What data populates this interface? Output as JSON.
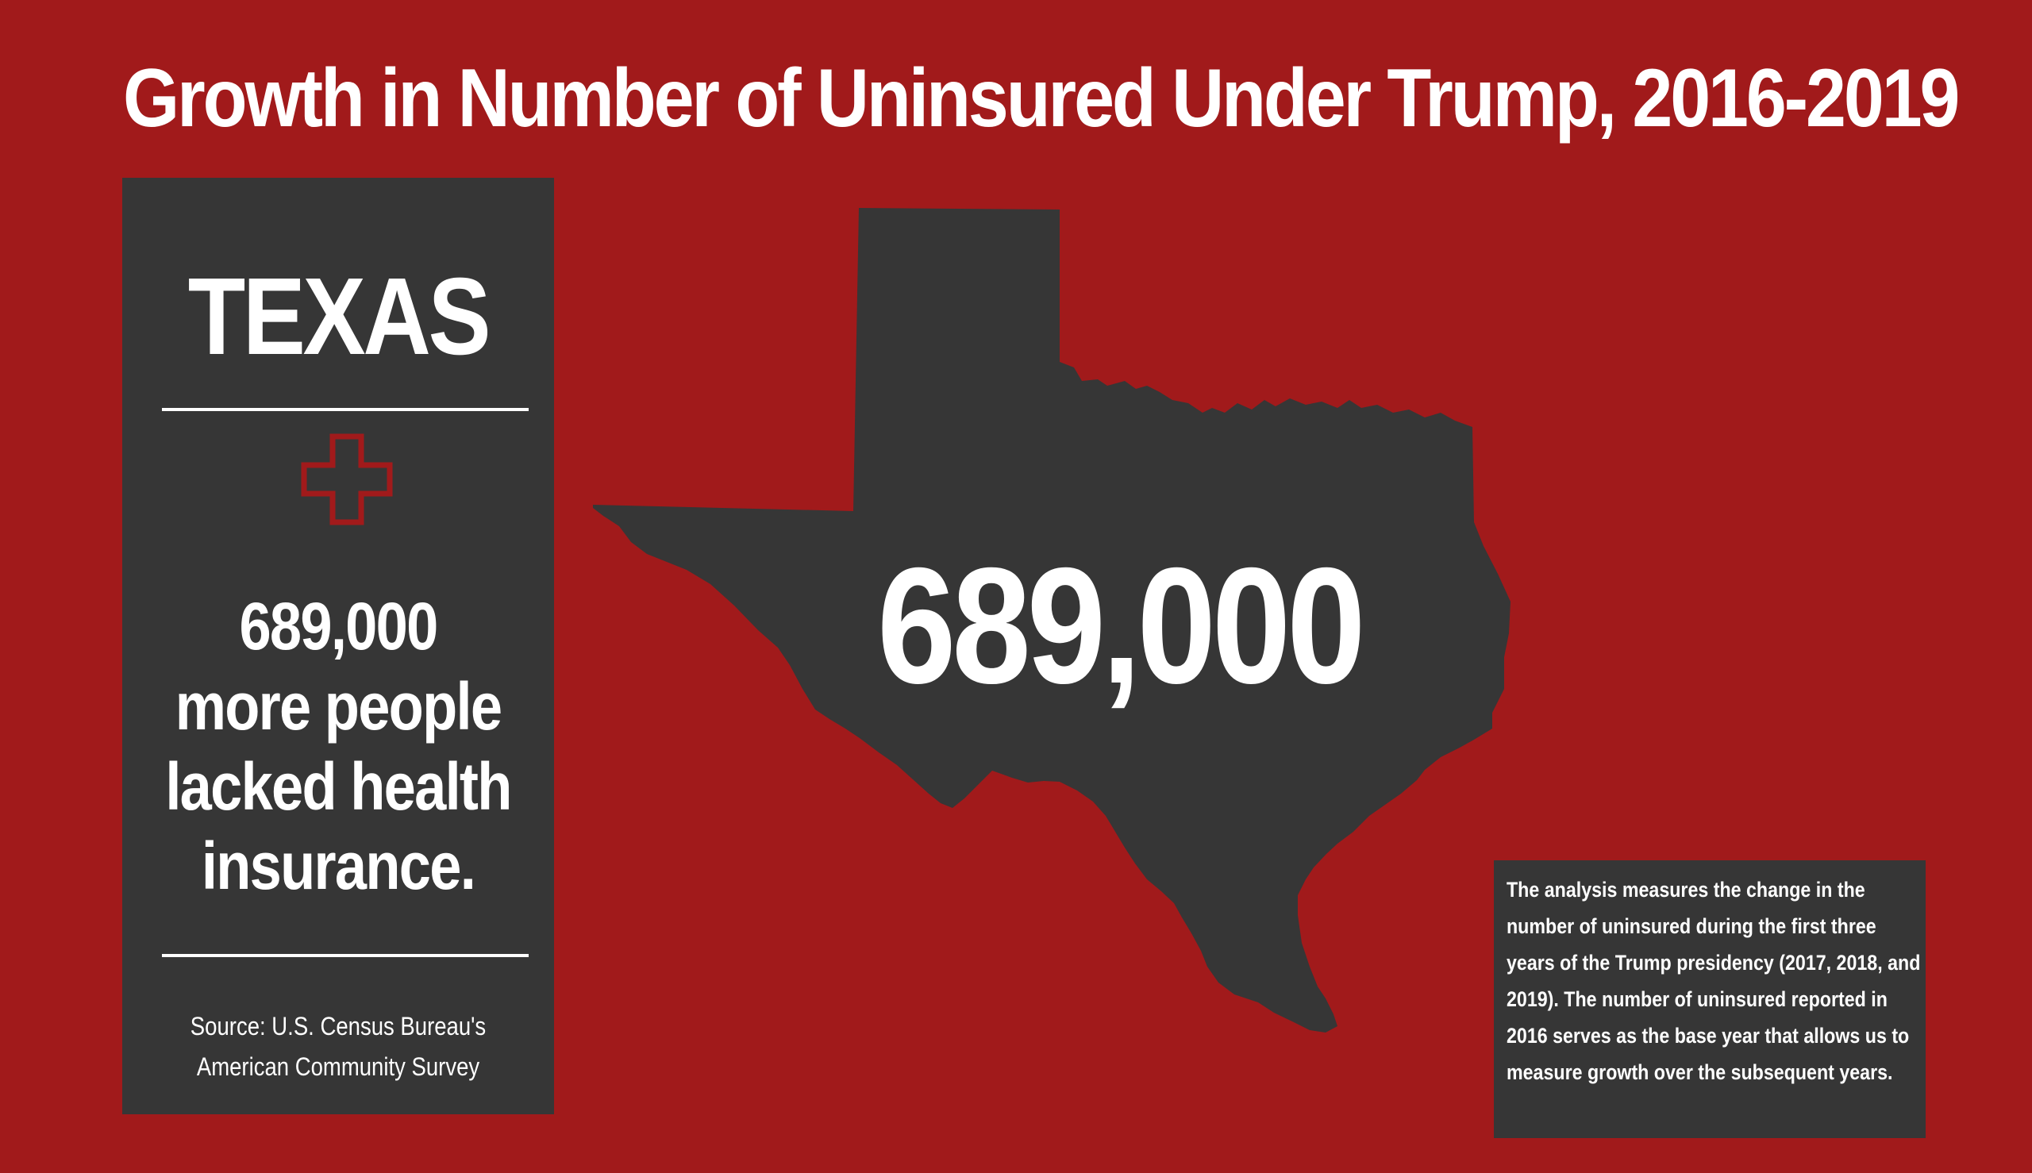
{
  "title": "Growth in Number of Uninsured Under Trump, 2016-2019",
  "side_panel": {
    "state": "TEXAS",
    "icon": "medical-cross-icon",
    "stat_lines": [
      "689,000",
      "more people",
      "lacked health",
      "insurance."
    ],
    "source": "Source: U.S. Census Bureau's American Community Survey"
  },
  "map": {
    "shape": "texas-state-silhouette",
    "number": "689,000"
  },
  "note": "The analysis measures the change in the number of uninsured during the  first three years of the Trump presidency (2017, 2018, and 2019). The number of uninsured reported in 2016 serves as the base year that allows us to measure growth over the subsequent years.",
  "colors": {
    "background": "#a11a1b",
    "panel": "#363636",
    "text": "#ffffff",
    "icon": "#a11a1b"
  }
}
